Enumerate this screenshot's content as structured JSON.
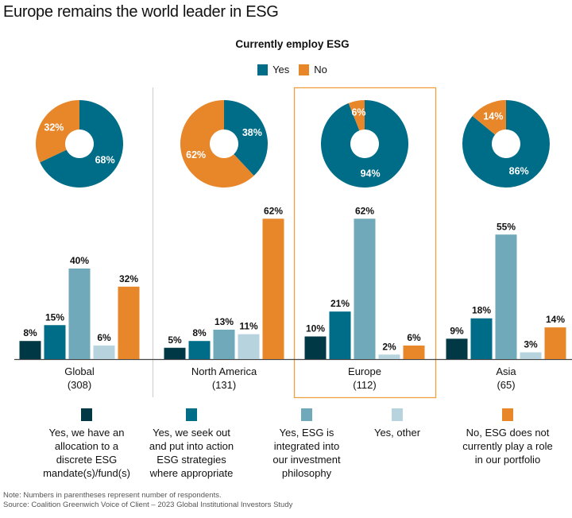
{
  "title": "Europe remains the world leader in ESG",
  "subtitle": "Currently employ ESG",
  "colors": {
    "yes": "#006d88",
    "no": "#e8862a",
    "c1": "#003845",
    "c2": "#006d88",
    "c3": "#6fa9ba",
    "c4": "#b7d4de",
    "c5": "#e8862a",
    "highlight": "#f0a040",
    "divider": "#cccccc",
    "axis": "#444444"
  },
  "pie_legend": [
    {
      "label": "Yes",
      "color_key": "yes"
    },
    {
      "label": "No",
      "color_key": "no"
    }
  ],
  "bar_legend": [
    {
      "label": "Yes, we have an allocation to a discrete ESG mandate(s)/fund(s)",
      "lines": [
        "Yes, we have an",
        "allocation to a",
        "discrete ESG",
        "mandate(s)/fund(s)"
      ],
      "color_key": "c1"
    },
    {
      "label": "Yes, we seek out and put into action ESG strategies where appropriate",
      "lines": [
        "Yes, we seek out",
        "and put into action",
        "ESG strategies",
        "where appropriate"
      ],
      "color_key": "c2"
    },
    {
      "label": "Yes, ESG is integrated into our investment philosophy",
      "lines": [
        "Yes, ESG is",
        "integrated into",
        "our investment",
        "philosophy"
      ],
      "color_key": "c3"
    },
    {
      "label": "Yes, other",
      "lines": [
        "Yes, other"
      ],
      "color_key": "c4"
    },
    {
      "label": "No, ESG does not currently play a role in our portfolio",
      "lines": [
        "No, ESG does not",
        "currently play a role",
        "in our portfolio"
      ],
      "color_key": "c5"
    }
  ],
  "note": "Note: Numbers in parentheses represent number of respondents.",
  "source": "Source: Coalition Greenwich Voice of Client – 2023 Global Institutional Investors Study",
  "chart_data": [
    {
      "type": "pie",
      "title": "Currently employ ESG",
      "donut": true,
      "legend": [
        "Yes",
        "No"
      ],
      "groups": [
        {
          "name": "Global",
          "n": "(308)",
          "values": [
            68,
            32
          ],
          "labels": [
            "68%",
            "32%"
          ]
        },
        {
          "name": "North America",
          "n": "(131)",
          "values": [
            38,
            62
          ],
          "labels": [
            "38%",
            "62%"
          ]
        },
        {
          "name": "Europe",
          "n": "(112)",
          "values": [
            94,
            6
          ],
          "labels": [
            "94%",
            "6%"
          ],
          "highlighted": true
        },
        {
          "name": "Asia",
          "n": "(65)",
          "values": [
            86,
            14
          ],
          "labels": [
            "86%",
            "14%"
          ]
        }
      ]
    },
    {
      "type": "bar",
      "categories": [
        "Global",
        "North America",
        "Europe",
        "Asia"
      ],
      "category_sublabels": [
        "(308)",
        "(131)",
        "(112)",
        "(65)"
      ],
      "ylim": [
        0,
        65
      ],
      "series": [
        {
          "name": "Yes, we have an allocation to a discrete ESG mandate(s)/fund(s)",
          "values": [
            8,
            5,
            10,
            9
          ]
        },
        {
          "name": "Yes, we seek out and put into action ESG strategies where appropriate",
          "values": [
            15,
            8,
            21,
            18
          ]
        },
        {
          "name": "Yes, ESG is integrated into our investment philosophy",
          "values": [
            40,
            13,
            62,
            55
          ]
        },
        {
          "name": "Yes, other",
          "values": [
            6,
            11,
            2,
            3
          ]
        },
        {
          "name": "No, ESG does not currently play a role in our portfolio",
          "values": [
            32,
            62,
            6,
            14
          ]
        }
      ],
      "highlighted_category": "Europe",
      "legend_position": "bottom"
    }
  ]
}
